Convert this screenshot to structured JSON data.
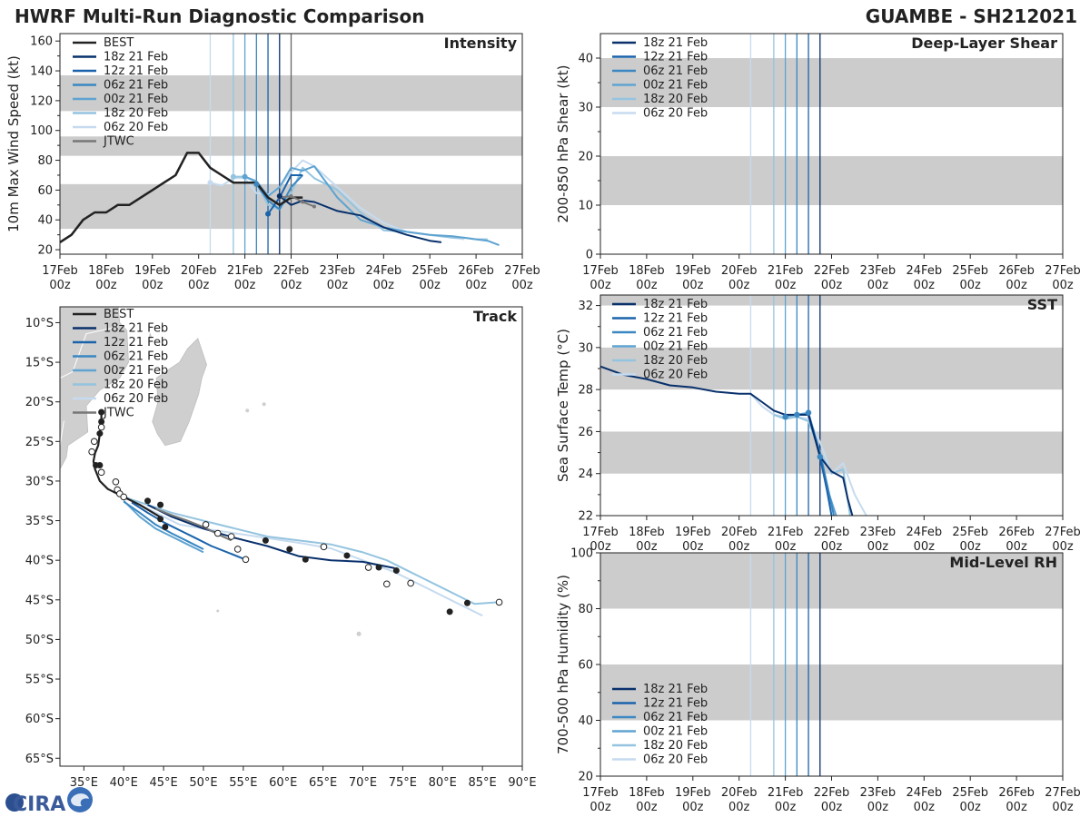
{
  "header": {
    "left_title": "HWRF Multi-Run Diagnostic Comparison",
    "right_title": "GUAMBE - SH212021"
  },
  "logo": {
    "text": "CIRA"
  },
  "colors": {
    "runs": {
      "18z 21 Feb": "#08306b",
      "12z 21 Feb": "#1a63ab",
      "06z 21 Feb": "#3a87c2",
      "00z 21 Feb": "#5fa3d1",
      "18z 20 Feb": "#94c4df",
      "06z 20 Feb": "#c6dbef"
    },
    "best": "#222222",
    "jtwc": "#777777",
    "band": "#cccccc",
    "land": "#cfcfcf"
  },
  "chart_data": [
    {
      "id": "intensity",
      "type": "line",
      "title": "Intensity",
      "ylabel": "10m Max Wind Speed (kt)",
      "xlim": [
        0,
        10
      ],
      "ylim": [
        17,
        165
      ],
      "yticks": [
        20,
        40,
        60,
        80,
        100,
        120,
        140,
        160
      ],
      "x_tick_labels": [
        "17Feb\n00z",
        "18Feb\n00z",
        "19Feb\n00z",
        "20Feb\n00z",
        "21Feb\n00z",
        "22Feb\n00z",
        "23Feb\n00z",
        "24Feb\n00z",
        "25Feb\n00z",
        "26Feb\n00z",
        "27Feb\n00z"
      ],
      "bands": [
        [
          34,
          64
        ],
        [
          83,
          96
        ],
        [
          113,
          137
        ]
      ],
      "vlines": [
        3.25,
        3.75,
        4.0,
        4.25,
        4.5,
        4.75,
        5.0
      ],
      "legend": [
        "BEST",
        "18z 21 Feb",
        "12z 21 Feb",
        "06z 21 Feb",
        "00z 21 Feb",
        "18z 20 Feb",
        "06z 20 Feb",
        "JTWC"
      ],
      "series": [
        {
          "name": "06z 20 Feb",
          "x": [
            3.25,
            3.5,
            3.75,
            4.0,
            4.25,
            4.5,
            4.75,
            5.0,
            5.25,
            5.5,
            6.0,
            6.5,
            7.0,
            7.5,
            8.0,
            8.5,
            8.75
          ],
          "y": [
            65,
            63,
            68,
            68,
            58,
            57,
            62,
            72,
            80,
            76,
            62,
            48,
            38,
            32,
            30,
            28,
            27
          ]
        },
        {
          "name": "18z 20 Feb",
          "x": [
            3.75,
            4.0,
            4.25,
            4.5,
            4.75,
            5.0,
            5.25,
            5.5,
            6.0,
            6.5,
            7.0,
            7.5,
            8.0,
            8.5,
            8.75,
            9.0,
            9.25
          ],
          "y": [
            69,
            69,
            65,
            50,
            47,
            58,
            75,
            68,
            60,
            45,
            33,
            32,
            30,
            28,
            28,
            27,
            27
          ]
        },
        {
          "name": "00z 21 Feb",
          "x": [
            4.0,
            4.25,
            4.5,
            4.75,
            5.0,
            5.25,
            5.5,
            6.0,
            6.5,
            7.0,
            7.5,
            8.0,
            8.5,
            8.75,
            9.0,
            9.25,
            9.5
          ],
          "y": [
            69,
            66,
            56,
            62,
            75,
            73,
            76,
            55,
            40,
            35,
            32,
            30,
            29,
            28,
            27,
            26,
            23
          ]
        },
        {
          "name": "06z 21 Feb",
          "x": [
            4.25,
            4.5,
            4.75,
            5.0,
            5.25
          ],
          "y": [
            64,
            53,
            47,
            62,
            70
          ]
        },
        {
          "name": "12z 21 Feb",
          "x": [
            4.5,
            4.75,
            5.0,
            5.25
          ],
          "y": [
            44,
            55,
            70,
            70
          ]
        },
        {
          "name": "18z 21 Feb",
          "x": [
            4.75,
            5.0,
            5.25,
            5.5,
            6.0,
            6.5,
            7.0,
            7.5,
            8.0,
            8.25
          ],
          "y": [
            56,
            50,
            53,
            52,
            46,
            43,
            35,
            30,
            26,
            25
          ]
        },
        {
          "name": "BEST",
          "x": [
            0,
            0.25,
            0.5,
            0.75,
            1.0,
            1.25,
            1.5,
            1.75,
            2.0,
            2.25,
            2.5,
            2.75,
            3.0,
            3.25,
            3.5,
            3.75,
            4.0,
            4.25,
            4.5,
            4.75,
            5.0,
            5.25
          ],
          "y": [
            25,
            30,
            40,
            45,
            45,
            50,
            50,
            55,
            60,
            65,
            70,
            85,
            85,
            75,
            70,
            65,
            65,
            65,
            55,
            50,
            55,
            55
          ]
        },
        {
          "name": "JTWC",
          "x": [
            4.75,
            5.0,
            5.25,
            5.5
          ],
          "y": [
            55,
            56,
            52,
            49
          ]
        }
      ]
    },
    {
      "id": "shear",
      "type": "line",
      "title": "Deep-Layer Shear",
      "ylabel": "200-850 hPa Shear (kt)",
      "xlim": [
        0,
        10
      ],
      "ylim": [
        0,
        45
      ],
      "yticks": [
        0,
        10,
        20,
        30,
        40
      ],
      "x_tick_labels": [
        "17Feb\n00z",
        "18Feb\n00z",
        "19Feb\n00z",
        "20Feb\n00z",
        "21Feb\n00z",
        "22Feb\n00z",
        "23Feb\n00z",
        "24Feb\n00z",
        "25Feb\n00z",
        "26Feb\n00z",
        "27Feb\n00z"
      ],
      "bands": [
        [
          10,
          20
        ],
        [
          30,
          40
        ]
      ],
      "vlines": [
        3.25,
        3.75,
        4.0,
        4.25,
        4.5,
        4.75
      ],
      "legend": [
        "18z 21 Feb",
        "12z 21 Feb",
        "06z 21 Feb",
        "00z 21 Feb",
        "18z 20 Feb",
        "06z 20 Feb"
      ],
      "series": []
    },
    {
      "id": "sst",
      "type": "line",
      "title": "SST",
      "ylabel": "Sea Surface Temp (°C)",
      "xlim": [
        0,
        10
      ],
      "ylim": [
        22,
        32.5
      ],
      "yticks": [
        22,
        24,
        26,
        28,
        30,
        32
      ],
      "x_tick_labels": [
        "17Feb\n00z",
        "18Feb\n00z",
        "19Feb\n00z",
        "20Feb\n00z",
        "21Feb\n00z",
        "22Feb\n00z",
        "23Feb\n00z",
        "24Feb\n00z",
        "25Feb\n00z",
        "26Feb\n00z",
        "27Feb\n00z"
      ],
      "bands": [
        [
          24,
          26
        ],
        [
          28,
          30
        ],
        [
          32,
          32.5
        ]
      ],
      "vlines": [
        3.25,
        3.75,
        4.0,
        4.25,
        4.5,
        4.75
      ],
      "legend": [
        "18z 21 Feb",
        "12z 21 Feb",
        "06z 21 Feb",
        "00z 21 Feb",
        "18z 20 Feb",
        "06z 20 Feb"
      ],
      "series": [
        {
          "name": "06z 20 Feb",
          "x": [
            3.25,
            3.5,
            3.75,
            4.0,
            4.25,
            4.5,
            4.75,
            5.0,
            5.25,
            5.5,
            5.75
          ],
          "y": [
            27.8,
            27.2,
            26.8,
            26.7,
            26.7,
            26.6,
            25.5,
            24.0,
            24.5,
            23.0,
            22.0
          ]
        },
        {
          "name": "18z 20 Feb",
          "x": [
            3.75,
            4.0,
            4.25,
            4.5,
            4.75,
            5.0,
            5.25,
            5.4
          ],
          "y": [
            26.8,
            26.6,
            26.7,
            26.5,
            25.0,
            24.0,
            24.2,
            22.0
          ]
        },
        {
          "name": "00z 21 Feb",
          "x": [
            4.0,
            4.25,
            4.5,
            4.75,
            4.95,
            5.1
          ],
          "y": [
            26.7,
            26.8,
            26.9,
            25.0,
            23.0,
            22.0
          ]
        },
        {
          "name": "06z 21 Feb",
          "x": [
            4.25,
            4.5,
            4.75,
            4.9,
            5.05
          ],
          "y": [
            26.8,
            26.8,
            25.0,
            23.5,
            22.0
          ]
        },
        {
          "name": "12z 21 Feb",
          "x": [
            4.5,
            4.75,
            4.9,
            5.0
          ],
          "y": [
            26.9,
            24.8,
            23.2,
            22.0
          ]
        },
        {
          "name": "18z 21 Feb",
          "x": [
            0,
            0.5,
            1.0,
            1.5,
            2.0,
            2.5,
            3.0,
            3.25,
            3.5,
            3.75,
            4.0,
            4.25,
            4.5,
            4.75,
            5.0,
            5.25,
            5.35,
            5.45
          ],
          "y": [
            29.1,
            28.7,
            28.5,
            28.2,
            28.1,
            27.9,
            27.8,
            27.8,
            27.4,
            27.0,
            26.8,
            26.8,
            26.8,
            24.8,
            24.1,
            23.8,
            22.8,
            22.0
          ]
        }
      ],
      "markers": [
        {
          "x": 4.0,
          "y": 26.7
        },
        {
          "x": 4.25,
          "y": 26.8
        },
        {
          "x": 4.5,
          "y": 26.9
        },
        {
          "x": 4.75,
          "y": 24.8
        }
      ]
    },
    {
      "id": "rh",
      "type": "line",
      "title": "Mid-Level RH",
      "ylabel": "700-500 hPa Humidity (%)",
      "xlim": [
        0,
        10
      ],
      "ylim": [
        20,
        100
      ],
      "yticks": [
        20,
        40,
        60,
        80,
        100
      ],
      "x_tick_labels": [
        "17Feb\n00z",
        "18Feb\n00z",
        "19Feb\n00z",
        "20Feb\n00z",
        "21Feb\n00z",
        "22Feb\n00z",
        "23Feb\n00z",
        "24Feb\n00z",
        "25Feb\n00z",
        "26Feb\n00z",
        "27Feb\n00z"
      ],
      "bands": [
        [
          40,
          60
        ],
        [
          80,
          100
        ]
      ],
      "vlines": [
        3.25,
        3.75,
        4.0,
        4.25,
        4.5,
        4.75
      ],
      "legend": [
        "18z 21 Feb",
        "12z 21 Feb",
        "06z 21 Feb",
        "00z 21 Feb",
        "18z 20 Feb",
        "06z 20 Feb"
      ],
      "series": []
    },
    {
      "id": "track",
      "type": "scatter",
      "title": "Track",
      "xlim": [
        32,
        90
      ],
      "ylim": [
        -66,
        -8
      ],
      "xticks": [
        35,
        40,
        45,
        50,
        55,
        60,
        65,
        70,
        75,
        80,
        85,
        90
      ],
      "x_tick_labels": [
        "35°E",
        "40°E",
        "45°E",
        "50°E",
        "55°E",
        "60°E",
        "65°E",
        "70°E",
        "75°E",
        "80°E",
        "85°E",
        "90°E"
      ],
      "yticks": [
        -10,
        -15,
        -20,
        -25,
        -30,
        -35,
        -40,
        -45,
        -50,
        -55,
        -60,
        -65
      ],
      "y_tick_labels": [
        "10°S",
        "15°S",
        "20°S",
        "25°S",
        "30°S",
        "35°S",
        "40°S",
        "45°S",
        "50°S",
        "55°S",
        "60°S",
        "65°S"
      ],
      "legend": [
        "BEST",
        "18z 21 Feb",
        "12z 21 Feb",
        "06z 21 Feb",
        "00z 21 Feb",
        "18z 20 Feb",
        "06z 20 Feb",
        "JTWC"
      ],
      "series": [
        {
          "name": "06z 20 Feb",
          "lon": [
            39,
            41,
            44,
            47,
            50,
            54,
            58,
            62,
            66,
            70,
            74,
            78,
            82,
            85
          ],
          "lat": [
            -31,
            -32.5,
            -34,
            -35.5,
            -36,
            -36.6,
            -37.2,
            -37.8,
            -38.5,
            -40,
            -41.5,
            -43.5,
            -45.5,
            -47
          ]
        },
        {
          "name": "18z 20 Feb",
          "lon": [
            40,
            43,
            46,
            50,
            54,
            58,
            62,
            66,
            70,
            73,
            76,
            80,
            84,
            87
          ],
          "lat": [
            -32,
            -33,
            -34,
            -35,
            -36,
            -37,
            -37.5,
            -38,
            -39,
            -40,
            -41.5,
            -43.5,
            -45.5,
            -45.3
          ]
        },
        {
          "name": "00z 21 Feb",
          "lon": [
            40,
            42,
            44,
            46,
            48,
            50
          ],
          "lat": [
            -32.5,
            -34.5,
            -36,
            -37,
            -38,
            -39
          ]
        },
        {
          "name": "06z 21 Feb",
          "lon": [
            40,
            42,
            44,
            46,
            48,
            50
          ],
          "lat": [
            -32.6,
            -34,
            -35.5,
            -36.6,
            -37.6,
            -38.6
          ]
        },
        {
          "name": "12z 21 Feb",
          "lon": [
            41,
            43,
            45,
            47,
            49,
            51,
            53,
            55
          ],
          "lat": [
            -32.7,
            -34,
            -35.2,
            -36.2,
            -37.2,
            -38.2,
            -39,
            -39.8
          ]
        },
        {
          "name": "18z 21 Feb",
          "lon": [
            43,
            46,
            50,
            54,
            58,
            62,
            66,
            70,
            74
          ],
          "lat": [
            -33,
            -34.5,
            -36,
            -37.2,
            -38.2,
            -39.5,
            -40,
            -40.2,
            -41
          ]
        },
        {
          "name": "BEST",
          "lon": [
            37.2,
            37.2,
            37,
            36.8,
            36.4,
            36.2,
            36.4,
            37,
            38,
            40,
            42,
            44.5
          ],
          "lat": [
            -21.3,
            -22.5,
            -24,
            -25.5,
            -26.5,
            -27.5,
            -28.5,
            -30,
            -31,
            -32,
            -33,
            -34.5
          ]
        },
        {
          "name": "JTWC",
          "lon": [
            44,
            46,
            48,
            50,
            52,
            53.5
          ],
          "lat": [
            -33.5,
            -34.3,
            -35,
            -35.8,
            -36.8,
            -37.5
          ]
        }
      ],
      "best_points": [
        [
          37.2,
          -21.3
        ],
        [
          37.2,
          -22.5
        ],
        [
          37.0,
          -24.0
        ],
        [
          37.0,
          -28.0
        ],
        [
          36.5,
          -28.0
        ],
        [
          43.0,
          -32.5
        ],
        [
          44.6,
          -33.0
        ],
        [
          44.6,
          -34.8
        ],
        [
          45.2,
          -35.8
        ],
        [
          57.8,
          -37.5
        ],
        [
          60.8,
          -38.6
        ],
        [
          62.8,
          -39.9
        ],
        [
          68.0,
          -39.4
        ],
        [
          72.0,
          -40.9
        ],
        [
          74.2,
          -41.3
        ],
        [
          80.9,
          -46.5
        ],
        [
          83.1,
          -45.4
        ]
      ],
      "open_points": [
        [
          37.2,
          -23.2
        ],
        [
          36.3,
          -25.0
        ],
        [
          36.0,
          -26.3
        ],
        [
          37.2,
          -28.9
        ],
        [
          39.0,
          -30.1
        ],
        [
          39.2,
          -31.1
        ],
        [
          39.5,
          -31.6
        ],
        [
          40.0,
          -32.0
        ],
        [
          50.3,
          -35.5
        ],
        [
          51.8,
          -36.6
        ],
        [
          53.5,
          -37.0
        ],
        [
          54.3,
          -38.6
        ],
        [
          55.3,
          -39.9
        ],
        [
          65.1,
          -38.3
        ],
        [
          70.7,
          -40.9
        ],
        [
          73.0,
          -43.0
        ],
        [
          76.0,
          -42.9
        ],
        [
          87.1,
          -45.3
        ]
      ]
    }
  ]
}
